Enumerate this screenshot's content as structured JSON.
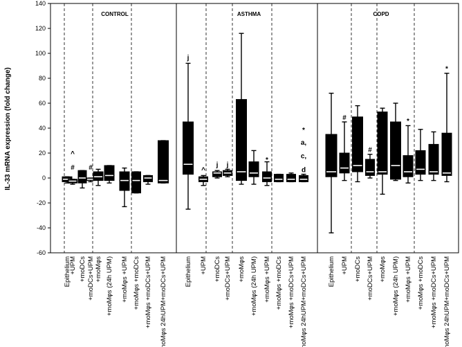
{
  "chart_data": {
    "type": "box",
    "ylabel": "IL-33 mRNA expression (fold change)",
    "ylim": [
      -60,
      140
    ],
    "yticks": [
      -60,
      -40,
      -20,
      0,
      20,
      40,
      60,
      80,
      100,
      120,
      140
    ],
    "groups": [
      "CONTROL",
      "ASTHMA",
      "COPD"
    ],
    "categories": [
      "Epithelium",
      "+UPM",
      "+moDCs",
      "+moDCs+UPM",
      "+moMφs",
      "+moMφs (24h UPM)",
      "+moMφs +UPM",
      "+moMφs +moDCs",
      "+moMφs +moDCs+UPM",
      "+moMφs 24hUPM+moDCs+UPM"
    ],
    "series": [
      {
        "name": "CONTROL",
        "boxes": [
          {
            "whisker_low": -4,
            "q1": -3,
            "median": -1,
            "q3": 1,
            "whisker_high": 1
          },
          {
            "whisker_low": -5,
            "q1": -4,
            "median": -2.5,
            "q3": -1,
            "whisker_high": -1
          },
          {
            "whisker_low": -8,
            "q1": -4,
            "median": 0,
            "q3": 6,
            "whisker_high": 6
          },
          {
            "whisker_low": -3,
            "q1": -2,
            "median": -1,
            "q3": 0,
            "whisker_high": 0
          },
          {
            "whisker_low": -6,
            "q1": -2,
            "median": 1,
            "q3": 5,
            "whisker_high": 7
          },
          {
            "whisker_low": -4,
            "q1": -2,
            "median": 2,
            "q3": 10,
            "whisker_high": 10
          },
          {
            "whisker_low": -23,
            "q1": -10,
            "median": -2,
            "q3": 5,
            "whisker_high": 8
          },
          {
            "whisker_low": -12,
            "q1": -12,
            "median": -2,
            "q3": 5,
            "whisker_high": 5
          },
          {
            "whisker_low": -5,
            "q1": -3,
            "median": 0,
            "q3": 2,
            "whisker_high": 2
          },
          {
            "whisker_low": -4,
            "q1": -4,
            "median": -2,
            "q3": 30,
            "whisker_high": 30
          }
        ]
      },
      {
        "name": "ASTHMA",
        "boxes": [
          {
            "whisker_low": -25,
            "q1": 3,
            "median": 11,
            "q3": 45,
            "whisker_high": 92
          },
          {
            "whisker_low": -6,
            "q1": -3,
            "median": -1,
            "q3": 1,
            "whisker_high": 2
          },
          {
            "whisker_low": 0,
            "q1": 1,
            "median": 4,
            "q3": 5,
            "whisker_high": 6
          },
          {
            "whisker_low": 1,
            "q1": 2,
            "median": 4,
            "q3": 6,
            "whisker_high": 7
          },
          {
            "whisker_low": -5,
            "q1": -2,
            "median": 5,
            "q3": 63,
            "whisker_high": 116
          },
          {
            "whisker_low": -5,
            "q1": 1,
            "median": 4,
            "q3": 13,
            "whisker_high": 22
          },
          {
            "whisker_low": -6,
            "q1": -3,
            "median": 0,
            "q3": 5,
            "whisker_high": 13
          },
          {
            "whisker_low": -3,
            "q1": -3,
            "median": -1,
            "q3": 3,
            "whisker_high": 3
          },
          {
            "whisker_low": -3,
            "q1": -3,
            "median": -1,
            "q3": 3,
            "whisker_high": 4
          },
          {
            "whisker_low": -3,
            "q1": -3,
            "median": -1,
            "q3": 2,
            "whisker_high": 3
          }
        ]
      },
      {
        "name": "COPD",
        "boxes": [
          {
            "whisker_low": -44,
            "q1": 1,
            "median": 5,
            "q3": 35,
            "whisker_high": 68
          },
          {
            "whisker_low": -2,
            "q1": 4,
            "median": 8,
            "q3": 20,
            "whisker_high": 45
          },
          {
            "whisker_low": -3,
            "q1": 5,
            "median": 10,
            "q3": 49,
            "whisker_high": 58
          },
          {
            "whisker_low": 0,
            "q1": 2,
            "median": 5,
            "q3": 15,
            "whisker_high": 19
          },
          {
            "whisker_low": -13,
            "q1": 3,
            "median": 5,
            "q3": 53,
            "whisker_high": 56
          },
          {
            "whisker_low": -2,
            "q1": -1,
            "median": 10,
            "q3": 45,
            "whisker_high": 60
          },
          {
            "whisker_low": -4,
            "q1": 1,
            "median": 5,
            "q3": 18,
            "whisker_high": 42
          },
          {
            "whisker_low": -2,
            "q1": 3,
            "median": 7,
            "q3": 22,
            "whisker_high": 39
          },
          {
            "whisker_low": -2,
            "q1": 3,
            "median": 5,
            "q3": 27,
            "whisker_high": 37
          },
          {
            "whisker_low": -3,
            "q1": 2,
            "median": 4,
            "q3": 36,
            "whisker_high": 84
          }
        ]
      }
    ],
    "annotations": [
      {
        "group": "CONTROL",
        "category": "+UPM",
        "text": "^",
        "y": 20
      },
      {
        "group": "CONTROL",
        "category": "+UPM",
        "text": "#",
        "y": 9
      },
      {
        "group": "CONTROL",
        "category": "+moDCs+UPM",
        "text": "#",
        "y": 9
      },
      {
        "group": "ASTHMA",
        "category": "Epithelium",
        "text": "j",
        "y": 97
      },
      {
        "group": "ASTHMA",
        "category": "+UPM",
        "text": "^",
        "y": 7
      },
      {
        "group": "ASTHMA",
        "category": "+moDCs",
        "text": "j",
        "y": 11
      },
      {
        "group": "ASTHMA",
        "category": "+moDCs+UPM",
        "text": "j",
        "y": 11
      },
      {
        "group": "ASTHMA",
        "category": "+moMφs +UPM",
        "text": "*",
        "y": 15
      },
      {
        "group": "ASTHMA",
        "category": "+moMφs 24hUPM+moDCs+UPM",
        "text": "*",
        "y": 39
      },
      {
        "group": "ASTHMA",
        "category": "+moMφs 24hUPM+moDCs+UPM",
        "text": "a,",
        "y": 29
      },
      {
        "group": "ASTHMA",
        "category": "+moMφs 24hUPM+moDCs+UPM",
        "text": "c,",
        "y": 18
      },
      {
        "group": "ASTHMA",
        "category": "+moMφs 24hUPM+moDCs+UPM",
        "text": "d",
        "y": 7
      },
      {
        "group": "COPD",
        "category": "+UPM",
        "text": "#",
        "y": 49
      },
      {
        "group": "COPD",
        "category": "+moDCs+UPM",
        "text": "#",
        "y": 23
      },
      {
        "group": "COPD",
        "category": "+moMφs +UPM",
        "text": "*",
        "y": 46
      },
      {
        "group": "COPD",
        "category": "+moMφs 24hUPM+moDCs+UPM",
        "text": "*",
        "y": 88
      }
    ]
  }
}
